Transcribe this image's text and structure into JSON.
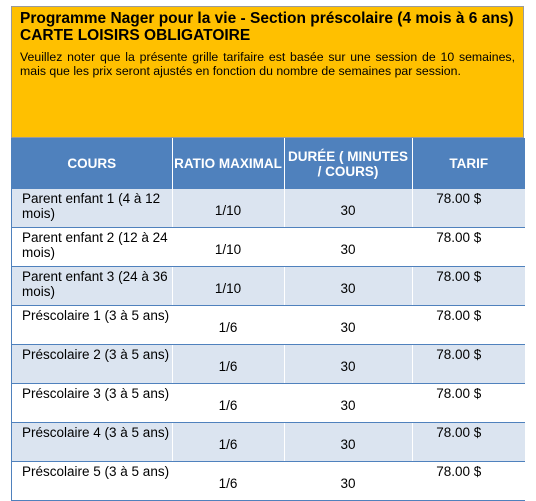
{
  "header": {
    "title": "Programme  Nager pour la vie -  Section préscolaire (4 mois à 6 ans)",
    "subtitle": "CARTE LOISIRS OBLIGATOIRE",
    "note": "Veuillez noter que la présente grille tarifaire est basée sur une session de 10 semaines, mais que les prix seront ajustés en fonction du nombre de semaines par session."
  },
  "colors": {
    "banner": "#ffc000",
    "header_row": "#4f81bd",
    "stripe": "#dbe4f0"
  },
  "table": {
    "columns": [
      "COURS",
      "RATIO MAXIMAL",
      "DURÉE ( MINUTES / COURS)",
      "TARIF"
    ],
    "rows": [
      {
        "cours": "Parent enfant 1 (4 à 12 mois)",
        "ratio": "1/10",
        "duree": "30",
        "tarif": "78.00 $"
      },
      {
        "cours": "Parent enfant 2 (12 à 24 mois)",
        "ratio": "1/10",
        "duree": "30",
        "tarif": "78.00 $"
      },
      {
        "cours": "Parent enfant 3 (24 à 36 mois)",
        "ratio": "1/10",
        "duree": "30",
        "tarif": "78.00 $"
      },
      {
        "cours": "Préscolaire 1 (3 à 5 ans)",
        "ratio": "1/6",
        "duree": "30",
        "tarif": "78.00 $"
      },
      {
        "cours": "Préscolaire 2 (3 à 5 ans)",
        "ratio": "1/6",
        "duree": "30",
        "tarif": "78.00 $"
      },
      {
        "cours": "Préscolaire 3 (3 à 5 ans)",
        "ratio": "1/6",
        "duree": "30",
        "tarif": "78.00 $"
      },
      {
        "cours": "Préscolaire 4 (3 à 5 ans)",
        "ratio": "1/6",
        "duree": "30",
        "tarif": "78.00 $"
      },
      {
        "cours": "Préscolaire 5 (3 à 5 ans)",
        "ratio": "1/6",
        "duree": "30",
        "tarif": "78.00 $"
      }
    ]
  }
}
